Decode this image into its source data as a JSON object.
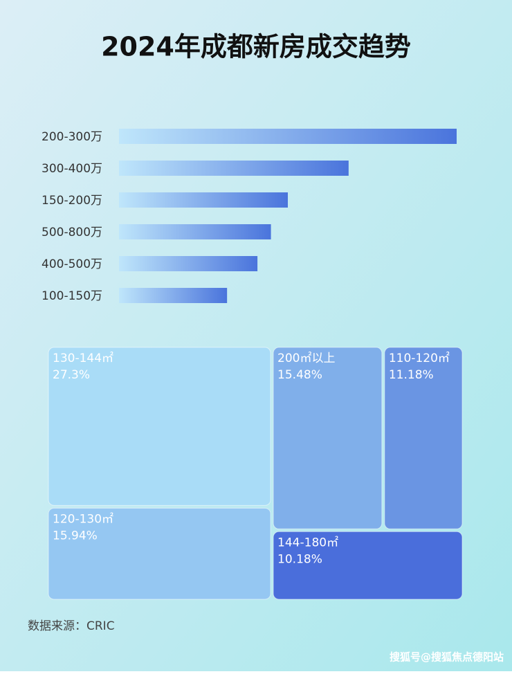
{
  "title": "2024年成都新房成交趋势",
  "chart_data": [
    {
      "type": "bar",
      "orientation": "horizontal",
      "categories": [
        "200-300万",
        "300-400万",
        "150-200万",
        "500-800万",
        "400-500万",
        "100-150万"
      ],
      "values": [
        100,
        68,
        50,
        45,
        41,
        32
      ],
      "xlim": [
        0,
        100
      ],
      "color": "#4a74dc"
    },
    {
      "type": "treemap",
      "categories": [
        "130-144㎡",
        "200㎡以上",
        "110-120㎡",
        "120-130㎡",
        "144-180㎡"
      ],
      "values": [
        27.3,
        15.48,
        11.18,
        15.94,
        10.18
      ],
      "value_labels": [
        "27.3%",
        "15.48%",
        "11.18%",
        "15.94%",
        "10.18%"
      ],
      "colors": [
        "#a9dcf7",
        "#80afea",
        "#6a95e3",
        "#95c7f2",
        "#4a6edb"
      ]
    }
  ],
  "source": "数据来源：CRIC",
  "watermark": "搜狐号@搜狐焦点德阳站"
}
